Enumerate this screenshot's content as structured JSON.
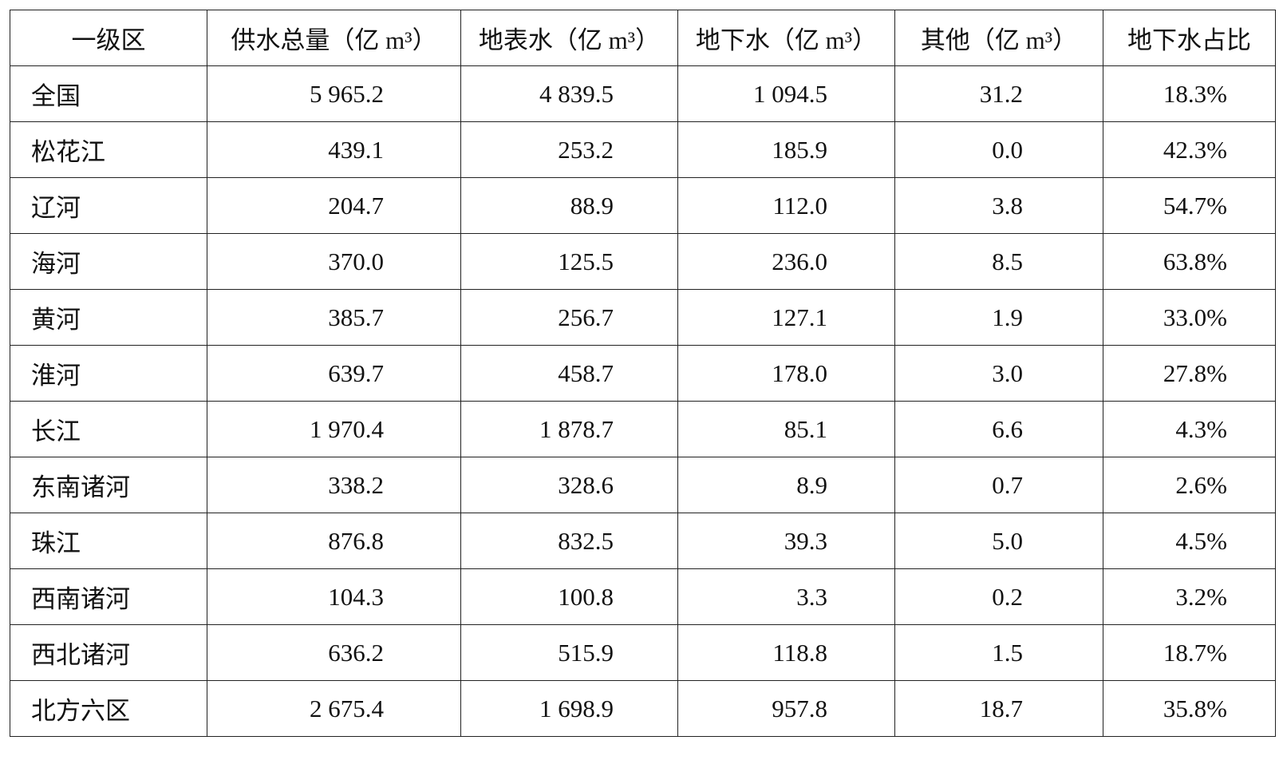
{
  "table": {
    "header": [
      "一级区",
      "供水总量（亿 m³）",
      "地表水（亿 m³）",
      "地下水（亿 m³）",
      "其他（亿 m³）",
      "地下水占比"
    ],
    "rows": [
      [
        "全国",
        "5 965.2",
        "4 839.5",
        "1 094.5",
        "31.2",
        "18.3%"
      ],
      [
        "松花江",
        "439.1",
        "253.2",
        "185.9",
        "0.0",
        "42.3%"
      ],
      [
        "辽河",
        "204.7",
        "88.9",
        "112.0",
        "3.8",
        "54.7%"
      ],
      [
        "海河",
        "370.0",
        "125.5",
        "236.0",
        "8.5",
        "63.8%"
      ],
      [
        "黄河",
        "385.7",
        "256.7",
        "127.1",
        "1.9",
        "33.0%"
      ],
      [
        "淮河",
        "639.7",
        "458.7",
        "178.0",
        "3.0",
        "27.8%"
      ],
      [
        "长江",
        "1 970.4",
        "1 878.7",
        "85.1",
        "6.6",
        "4.3%"
      ],
      [
        "东南诸河",
        "338.2",
        "328.6",
        "8.9",
        "0.7",
        "2.6%"
      ],
      [
        "珠江",
        "876.8",
        "832.5",
        "39.3",
        "5.0",
        "4.5%"
      ],
      [
        "西南诸河",
        "104.3",
        "100.8",
        "3.3",
        "0.2",
        "3.2%"
      ],
      [
        "西北诸河",
        "636.2",
        "515.9",
        "118.8",
        "1.5",
        "18.7%"
      ],
      [
        "北方六区",
        "2 675.4",
        "1 698.9",
        "957.8",
        "18.7",
        "35.8%"
      ]
    ]
  }
}
